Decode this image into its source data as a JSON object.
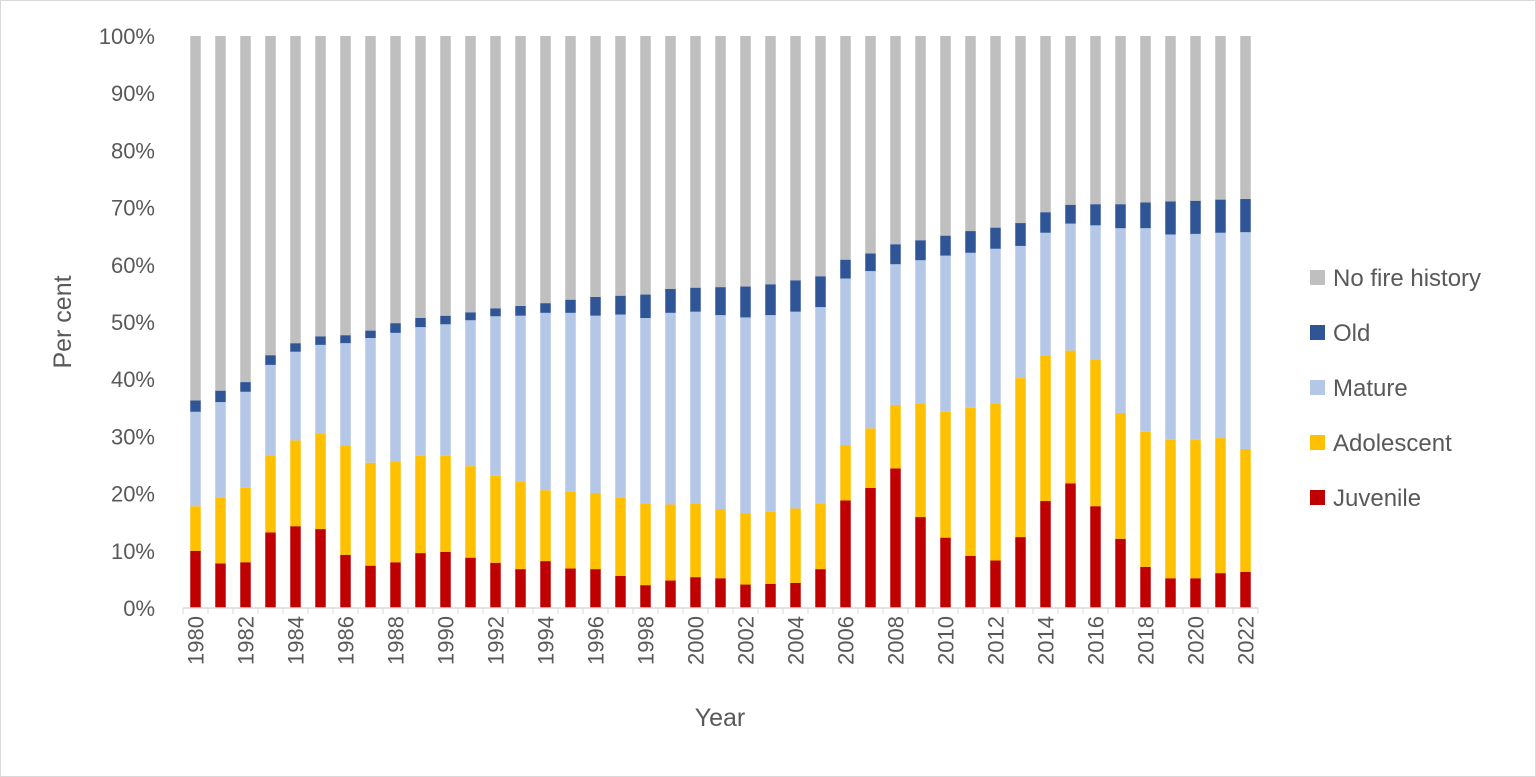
{
  "chart_data": {
    "type": "bar",
    "stacked": true,
    "title": "",
    "xlabel": "Year",
    "ylabel": "Per cent",
    "ylim": [
      0,
      100
    ],
    "yticks": [
      "0%",
      "10%",
      "20%",
      "30%",
      "40%",
      "50%",
      "60%",
      "70%",
      "80%",
      "90%",
      "100%"
    ],
    "grid": false,
    "legend_position": "right",
    "categories": [
      1980,
      1981,
      1982,
      1983,
      1984,
      1985,
      1986,
      1987,
      1988,
      1989,
      1990,
      1991,
      1992,
      1993,
      1994,
      1995,
      1996,
      1997,
      1998,
      1999,
      2000,
      2001,
      2002,
      2003,
      2004,
      2005,
      2006,
      2007,
      2008,
      2009,
      2010,
      2011,
      2012,
      2013,
      2014,
      2015,
      2016,
      2017,
      2018,
      2019,
      2020,
      2021,
      2022
    ],
    "xtick_labels": [
      "1980",
      "1982",
      "1984",
      "1986",
      "1988",
      "1990",
      "1992",
      "1994",
      "1996",
      "1998",
      "2000",
      "2002",
      "2004",
      "2006",
      "2008",
      "2010",
      "2012",
      "2014",
      "2016",
      "2018",
      "2020",
      "2022"
    ],
    "series": [
      {
        "name": "Juvenile",
        "color": "#c00000",
        "values": [
          10,
          7.8,
          8,
          13.2,
          14.3,
          13.8,
          9.3,
          7.4,
          8,
          9.6,
          9.8,
          8.8,
          7.9,
          6.8,
          8.2,
          6.9,
          6.8,
          5.6,
          4,
          4.8,
          5.4,
          5.2,
          4.1,
          4.2,
          4.4,
          6.8,
          18.8,
          21,
          24.4,
          15.9,
          12.3,
          9.1,
          8.3,
          12.4,
          18.7,
          21.8,
          17.8,
          12.1,
          7.2,
          5.2,
          5.2,
          6.1,
          6.3
        ]
      },
      {
        "name": "Adolescent",
        "color": "#ffc000",
        "values": [
          7.8,
          11.5,
          13,
          13.5,
          15,
          16.7,
          19.1,
          18,
          17.6,
          17,
          16.8,
          16,
          15.2,
          15.3,
          12.4,
          13.5,
          13.3,
          13.7,
          14.3,
          13.3,
          12.9,
          12.1,
          12.5,
          12.6,
          13,
          11.5,
          9.7,
          10.4,
          11.1,
          19.9,
          22,
          25.9,
          27.5,
          27.8,
          25.5,
          23.2,
          25.7,
          22,
          23.6,
          24.2,
          24.3,
          23.6,
          21.5
        ]
      },
      {
        "name": "Mature",
        "color": "#b4c7e7",
        "values": [
          16.5,
          16.7,
          16.8,
          15.8,
          15.5,
          15.5,
          17.9,
          21.8,
          22.5,
          22.5,
          23,
          25.5,
          27.9,
          29,
          31,
          31.2,
          31,
          32,
          32.4,
          33.5,
          33.5,
          33.9,
          34.2,
          34.4,
          34.4,
          34.3,
          29.1,
          27.5,
          24.6,
          25,
          27.3,
          27.1,
          27,
          23.1,
          21.4,
          22.2,
          23.4,
          32.3,
          35.6,
          35.9,
          35.9,
          35.9,
          37.9
        ]
      },
      {
        "name": "Old",
        "color": "#2f5597",
        "values": [
          2,
          2,
          1.7,
          1.7,
          1.5,
          1.5,
          1.4,
          1.3,
          1.7,
          1.6,
          1.5,
          1.4,
          1.4,
          1.7,
          1.7,
          2.3,
          3.3,
          3.3,
          4.1,
          4.2,
          4.2,
          4.9,
          5.4,
          5.4,
          5.5,
          5.4,
          3.3,
          3.1,
          3.5,
          3.5,
          3.5,
          3.8,
          3.7,
          4,
          3.6,
          3.3,
          3.7,
          4.2,
          4.5,
          5.8,
          5.8,
          5.8,
          5.8
        ]
      },
      {
        "name": "No fire history",
        "color": "#bfbfbf",
        "values": [
          63.7,
          62,
          60.5,
          55.8,
          53.7,
          52.5,
          52.3,
          51.5,
          50.2,
          49.3,
          48.9,
          48.3,
          47.6,
          47.2,
          46.7,
          46.1,
          45.6,
          45.4,
          45.2,
          44.2,
          44,
          43.9,
          43.8,
          43.4,
          42.7,
          42,
          39.1,
          38,
          36.4,
          35.7,
          34.9,
          34.1,
          33.5,
          32.7,
          30.8,
          29.5,
          29.4,
          29.4,
          29.1,
          28.9,
          28.8,
          28.6,
          28.5
        ]
      }
    ],
    "legend_order": [
      "No fire history",
      "Old",
      "Mature",
      "Adolescent",
      "Juvenile"
    ]
  }
}
